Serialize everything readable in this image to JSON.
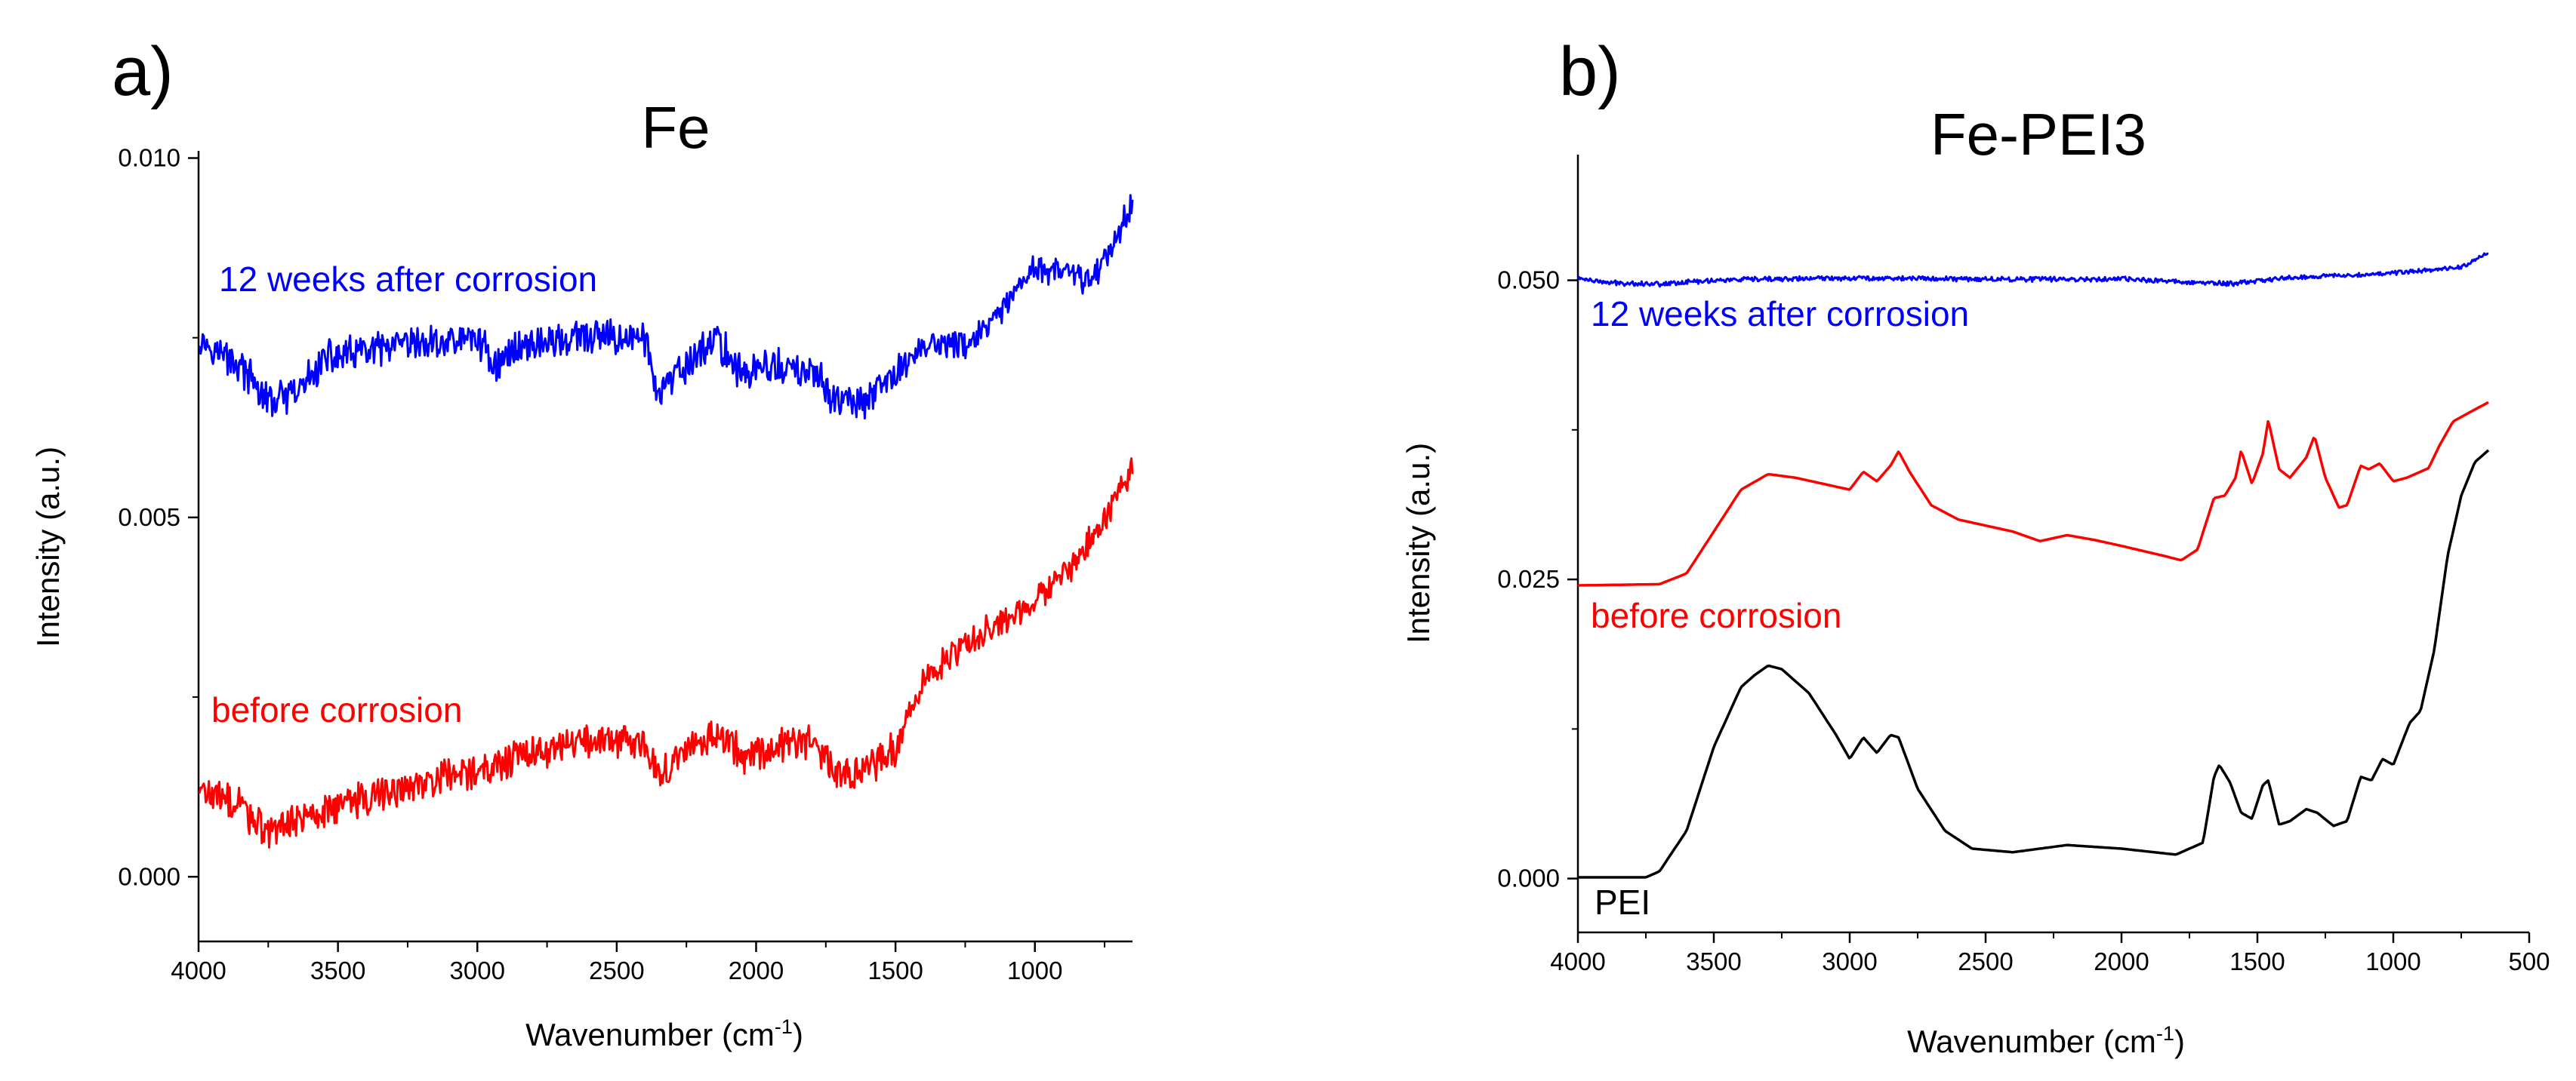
{
  "chart_data": [
    {
      "type": "line",
      "panel_label": "a)",
      "title": "Fe",
      "xlabel": "Wavenumber (cm",
      "xlabel_sup": "-1",
      "xlabel_end": ")",
      "ylabel": "Intensity (a.u.)",
      "xlim": [
        4000,
        650
      ],
      "ylim": [
        -0.0009,
        0.0101
      ],
      "x_ticks": [
        4000,
        3500,
        3000,
        2500,
        2000,
        1500,
        1000
      ],
      "y_ticks": [
        0.0,
        0.005,
        0.01
      ],
      "y_tick_labels": [
        "0.000",
        "0.005",
        "0.010"
      ],
      "series": [
        {
          "name": "12 weeks after corrosion",
          "color": "#0000ff",
          "noise": 0.00022,
          "points": [
            [
              4000,
              0.0075
            ],
            [
              3850,
              0.0071
            ],
            [
              3750,
              0.0066
            ],
            [
              3650,
              0.0067
            ],
            [
              3550,
              0.0072
            ],
            [
              3400,
              0.0073
            ],
            [
              3200,
              0.0074
            ],
            [
              3000,
              0.0075
            ],
            [
              2930,
              0.0071
            ],
            [
              2850,
              0.0074
            ],
            [
              2600,
              0.0075
            ],
            [
              2400,
              0.0075
            ],
            [
              2350,
              0.0067
            ],
            [
              2250,
              0.0071
            ],
            [
              2150,
              0.0075
            ],
            [
              2050,
              0.007
            ],
            [
              1950,
              0.0071
            ],
            [
              1800,
              0.007
            ],
            [
              1700,
              0.0066
            ],
            [
              1600,
              0.0066
            ],
            [
              1500,
              0.007
            ],
            [
              1400,
              0.0074
            ],
            [
              1250,
              0.0074
            ],
            [
              1150,
              0.0077
            ],
            [
              1050,
              0.0082
            ],
            [
              1000,
              0.0085
            ],
            [
              900,
              0.0084
            ],
            [
              800,
              0.0083
            ],
            [
              720,
              0.0088
            ],
            [
              650,
              0.0094
            ]
          ]
        },
        {
          "name": "before corrosion",
          "color": "#ff0000",
          "noise": 0.00022,
          "points": [
            [
              4000,
              0.0012
            ],
            [
              3850,
              0.001
            ],
            [
              3750,
              0.0006
            ],
            [
              3650,
              0.0008
            ],
            [
              3500,
              0.001
            ],
            [
              3300,
              0.0012
            ],
            [
              3100,
              0.0014
            ],
            [
              2900,
              0.0016
            ],
            [
              2700,
              0.0018
            ],
            [
              2500,
              0.0019
            ],
            [
              2400,
              0.0019
            ],
            [
              2350,
              0.0014
            ],
            [
              2250,
              0.0017
            ],
            [
              2150,
              0.002
            ],
            [
              2050,
              0.0017
            ],
            [
              1950,
              0.0018
            ],
            [
              1800,
              0.0019
            ],
            [
              1700,
              0.0014
            ],
            [
              1600,
              0.0015
            ],
            [
              1500,
              0.0018
            ],
            [
              1400,
              0.0027
            ],
            [
              1300,
              0.0031
            ],
            [
              1150,
              0.0035
            ],
            [
              1000,
              0.0038
            ],
            [
              850,
              0.0044
            ],
            [
              750,
              0.005
            ],
            [
              650,
              0.0057
            ]
          ]
        }
      ]
    },
    {
      "type": "line",
      "panel_label": "b)",
      "title": "Fe-PEI3",
      "xlabel": "Wavenumber (cm",
      "xlabel_sup": "-1",
      "xlabel_end": ")",
      "ylabel": "Intensity (a.u.)",
      "xlim": [
        4000,
        500
      ],
      "ylim": [
        -0.0045,
        0.0605
      ],
      "x_ticks": [
        4000,
        3500,
        3000,
        2500,
        2000,
        1500,
        1000,
        500
      ],
      "y_ticks": [
        0.0,
        0.025,
        0.05
      ],
      "y_tick_labels": [
        "0.000",
        "0.025",
        "0.050"
      ],
      "series": [
        {
          "name": "12 weeks after corrosion",
          "color": "#0000ff",
          "noise": 0.00018,
          "points": [
            [
              4000,
              0.0502
            ],
            [
              3900,
              0.0498
            ],
            [
              3700,
              0.0497
            ],
            [
              3500,
              0.05
            ],
            [
              3000,
              0.0502
            ],
            [
              2500,
              0.0501
            ],
            [
              2000,
              0.0501
            ],
            [
              1600,
              0.0497
            ],
            [
              1400,
              0.0502
            ],
            [
              1000,
              0.0506
            ],
            [
              750,
              0.0511
            ],
            [
              650,
              0.0523
            ]
          ]
        },
        {
          "name": "before corrosion",
          "color": "#ff0000",
          "noise": 0,
          "points": [
            [
              4000,
              0.0245
            ],
            [
              3700,
              0.0246
            ],
            [
              3600,
              0.0255
            ],
            [
              3500,
              0.029
            ],
            [
              3400,
              0.0325
            ],
            [
              3300,
              0.0338
            ],
            [
              3200,
              0.0335
            ],
            [
              3100,
              0.033
            ],
            [
              3000,
              0.0325
            ],
            [
              2950,
              0.034
            ],
            [
              2900,
              0.0332
            ],
            [
              2850,
              0.0345
            ],
            [
              2820,
              0.0357
            ],
            [
              2780,
              0.034
            ],
            [
              2700,
              0.0312
            ],
            [
              2600,
              0.03
            ],
            [
              2400,
              0.029
            ],
            [
              2300,
              0.0282
            ],
            [
              2200,
              0.0287
            ],
            [
              2100,
              0.0283
            ],
            [
              2000,
              0.0278
            ],
            [
              1850,
              0.027
            ],
            [
              1780,
              0.0266
            ],
            [
              1720,
              0.0275
            ],
            [
              1660,
              0.0318
            ],
            [
              1620,
              0.032
            ],
            [
              1580,
              0.0335
            ],
            [
              1560,
              0.0358
            ],
            [
              1520,
              0.033
            ],
            [
              1480,
              0.0355
            ],
            [
              1460,
              0.0383
            ],
            [
              1420,
              0.0342
            ],
            [
              1380,
              0.0335
            ],
            [
              1320,
              0.0352
            ],
            [
              1290,
              0.037
            ],
            [
              1250,
              0.0335
            ],
            [
              1200,
              0.031
            ],
            [
              1170,
              0.0312
            ],
            [
              1120,
              0.0345
            ],
            [
              1090,
              0.0342
            ],
            [
              1050,
              0.0347
            ],
            [
              1000,
              0.0332
            ],
            [
              950,
              0.0335
            ],
            [
              870,
              0.0343
            ],
            [
              830,
              0.0362
            ],
            [
              780,
              0.0382
            ],
            [
              700,
              0.0392
            ],
            [
              650,
              0.0398
            ]
          ]
        },
        {
          "name": "PEI",
          "color": "#000000",
          "noise": 0,
          "points": [
            [
              4000,
              0.0001
            ],
            [
              3750,
              0.0001
            ],
            [
              3700,
              0.0006
            ],
            [
              3600,
              0.004
            ],
            [
              3500,
              0.011
            ],
            [
              3400,
              0.016
            ],
            [
              3350,
              0.017
            ],
            [
              3300,
              0.0178
            ],
            [
              3250,
              0.0175
            ],
            [
              3150,
              0.0155
            ],
            [
              3050,
              0.012
            ],
            [
              3000,
              0.01
            ],
            [
              2950,
              0.0118
            ],
            [
              2900,
              0.0105
            ],
            [
              2850,
              0.012
            ],
            [
              2820,
              0.0118
            ],
            [
              2750,
              0.0075
            ],
            [
              2650,
              0.004
            ],
            [
              2550,
              0.0025
            ],
            [
              2400,
              0.0022
            ],
            [
              2200,
              0.0028
            ],
            [
              2000,
              0.0025
            ],
            [
              1800,
              0.002
            ],
            [
              1700,
              0.003
            ],
            [
              1660,
              0.0085
            ],
            [
              1640,
              0.0095
            ],
            [
              1600,
              0.008
            ],
            [
              1560,
              0.0055
            ],
            [
              1520,
              0.005
            ],
            [
              1480,
              0.0078
            ],
            [
              1460,
              0.0082
            ],
            [
              1420,
              0.0045
            ],
            [
              1380,
              0.0048
            ],
            [
              1320,
              0.0058
            ],
            [
              1280,
              0.0055
            ],
            [
              1220,
              0.0044
            ],
            [
              1170,
              0.0048
            ],
            [
              1120,
              0.0085
            ],
            [
              1080,
              0.0082
            ],
            [
              1040,
              0.01
            ],
            [
              1000,
              0.0095
            ],
            [
              940,
              0.013
            ],
            [
              900,
              0.014
            ],
            [
              850,
              0.019
            ],
            [
              800,
              0.027
            ],
            [
              750,
              0.032
            ],
            [
              700,
              0.0348
            ],
            [
              650,
              0.0358
            ]
          ]
        }
      ]
    }
  ]
}
